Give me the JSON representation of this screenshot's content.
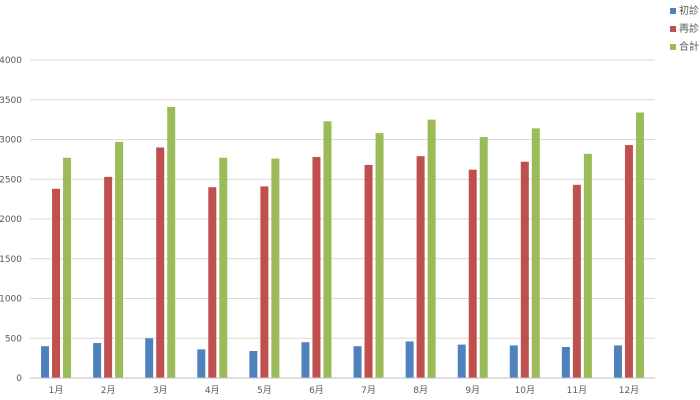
{
  "chart_data": {
    "type": "bar",
    "title": "",
    "xlabel": "",
    "ylabel": "",
    "categories": [
      "1月",
      "2月",
      "3月",
      "4月",
      "5月",
      "6月",
      "7月",
      "8月",
      "9月",
      "10月",
      "11月",
      "12月"
    ],
    "series": [
      {
        "name": "初診",
        "color": "#4f81bd",
        "values": [
          400,
          440,
          500,
          360,
          340,
          450,
          400,
          460,
          420,
          410,
          390,
          410
        ]
      },
      {
        "name": "再診",
        "color": "#c0504d",
        "values": [
          2380,
          2530,
          2900,
          2400,
          2410,
          2780,
          2680,
          2790,
          2620,
          2720,
          2430,
          2930
        ]
      },
      {
        "name": "合計",
        "color": "#9bbb59",
        "values": [
          2770,
          2970,
          3410,
          2770,
          2760,
          3230,
          3080,
          3250,
          3030,
          3140,
          2820,
          3340
        ]
      }
    ],
    "y_ticks": [
      "0",
      "500",
      "1000",
      "1500",
      "2000",
      "2500",
      "3000",
      "3500",
      "4000"
    ],
    "ylim": [
      0,
      4000
    ],
    "grid": true,
    "legend_position": "top-right"
  }
}
